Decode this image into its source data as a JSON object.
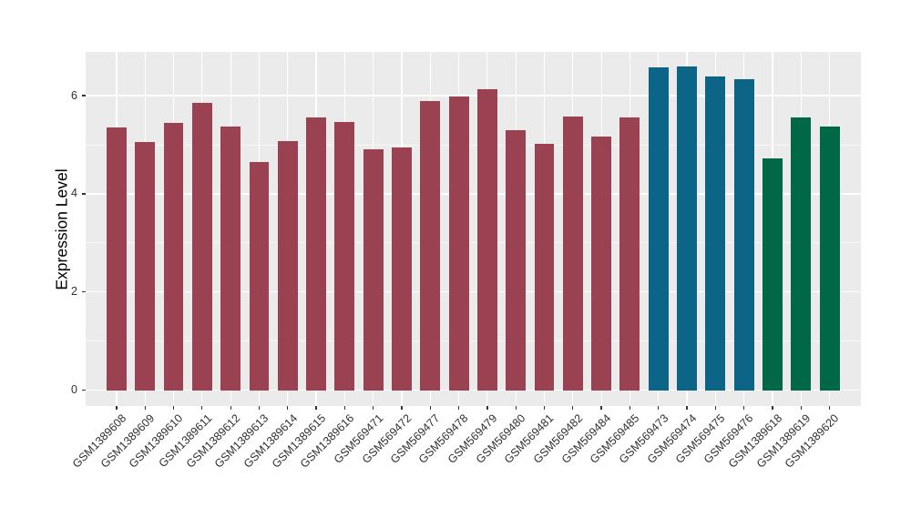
{
  "chart_data": {
    "type": "bar",
    "title": "",
    "xlabel": "",
    "ylabel": "Expression Level",
    "ylim": [
      0,
      6.9
    ],
    "yticks": [
      0,
      2,
      4,
      6
    ],
    "yticks_minor": [
      1,
      3,
      5
    ],
    "grid": true,
    "legend": false,
    "categories": [
      "GSM1389608",
      "GSM1389609",
      "GSM1389610",
      "GSM1389611",
      "GSM1389612",
      "GSM1389613",
      "GSM1389614",
      "GSM1389615",
      "GSM1389616",
      "GSM569471",
      "GSM569472",
      "GSM569477",
      "GSM569478",
      "GSM569479",
      "GSM569480",
      "GSM569481",
      "GSM569482",
      "GSM569484",
      "GSM569485",
      "GSM569473",
      "GSM569474",
      "GSM569475",
      "GSM569476",
      "GSM1389618",
      "GSM1389619",
      "GSM1389620"
    ],
    "values": [
      5.35,
      5.06,
      5.44,
      5.85,
      5.38,
      4.65,
      5.07,
      5.56,
      5.47,
      4.9,
      4.95,
      5.9,
      5.99,
      6.13,
      5.3,
      5.02,
      5.57,
      5.17,
      5.56,
      6.57,
      6.59,
      6.4,
      6.33,
      4.73,
      5.56,
      5.38
    ],
    "color_groups": [
      {
        "color": "#9b4252",
        "from": 0,
        "to": 18
      },
      {
        "color": "#0c6586",
        "from": 19,
        "to": 22
      },
      {
        "color": "#016847",
        "from": 23,
        "to": 25
      }
    ],
    "colors": {
      "panel_bg": "#ebebeb",
      "grid": "#ffffff",
      "axis_text": "#303030",
      "tick_mark": "#333333"
    }
  }
}
